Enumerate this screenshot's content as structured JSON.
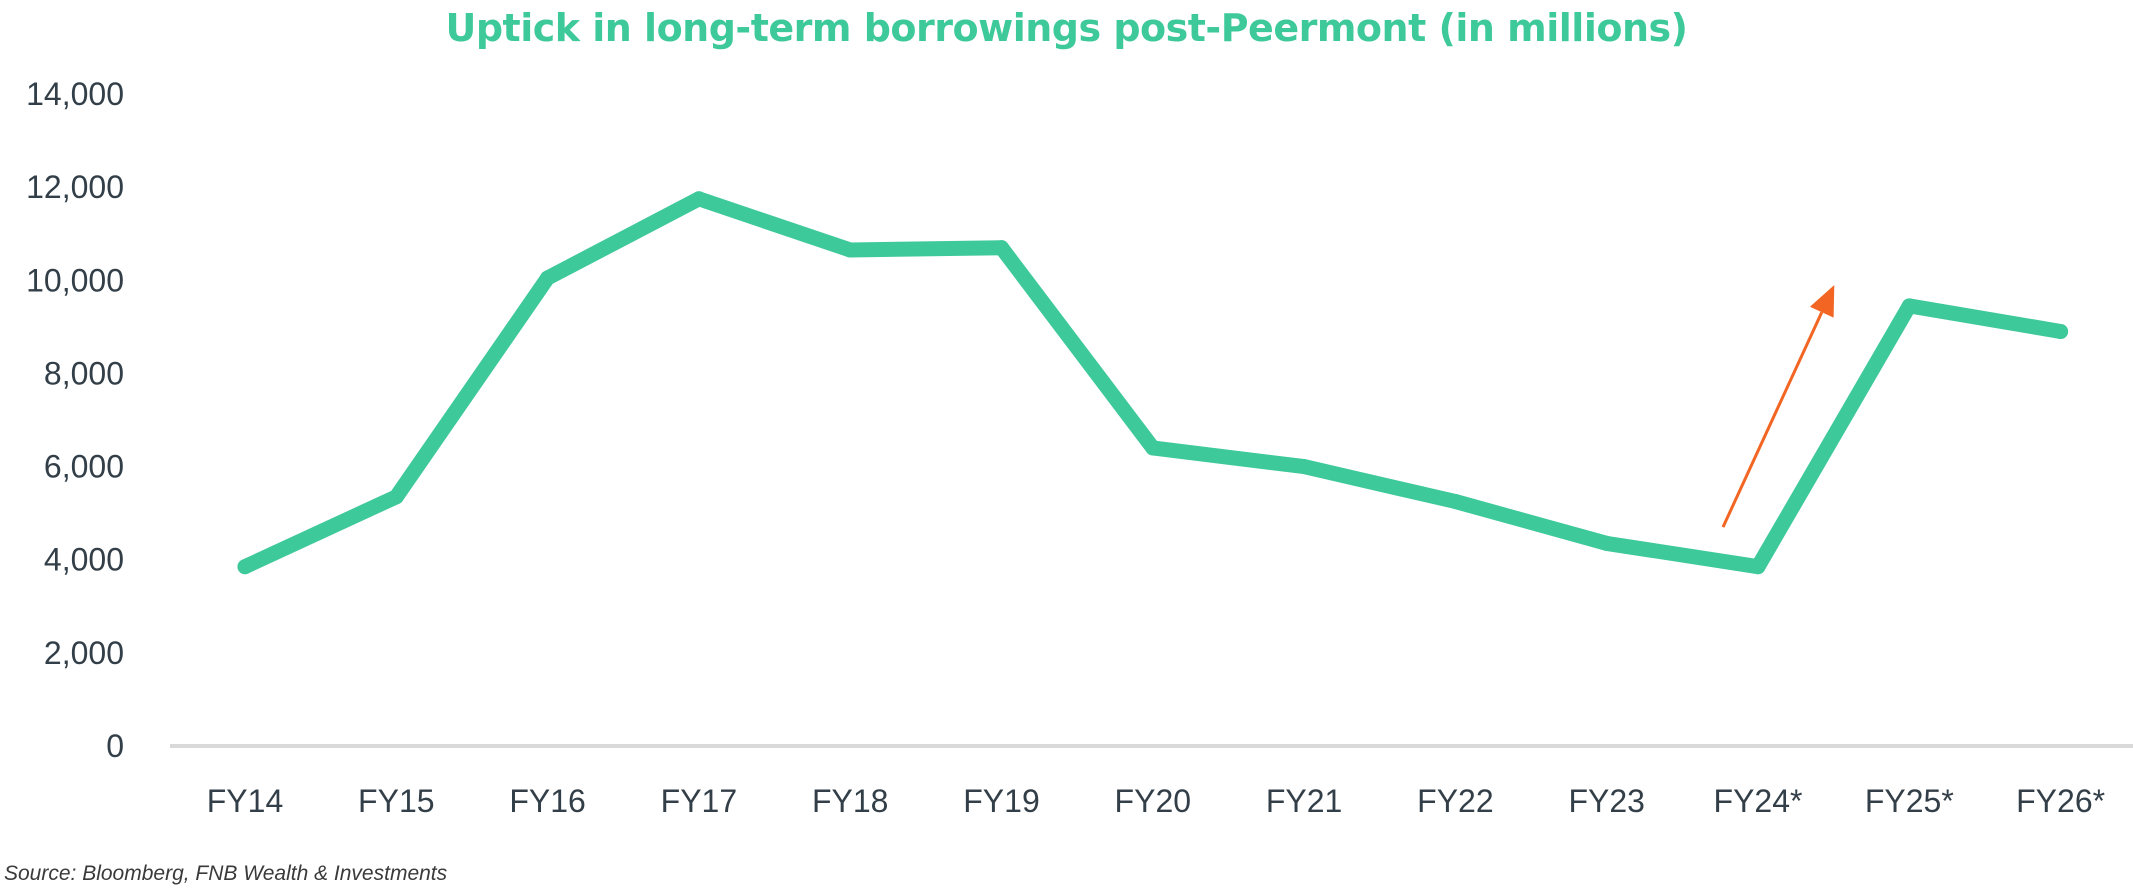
{
  "source": "Source: Bloomberg, FNB Wealth & Investments",
  "colors": {
    "line": "#3ec99a",
    "title": "#3ec99a",
    "arrow": "#f26522",
    "baseline": "#d9d9d9",
    "tick_text": "#333f48"
  },
  "chart_data": {
    "type": "line",
    "title": "Uptick in long-term borrowings post-Peermont (in millions)",
    "xlabel": "",
    "ylabel": "",
    "categories": [
      "FY14",
      "FY15",
      "FY16",
      "FY17",
      "FY18",
      "FY19",
      "FY20",
      "FY21",
      "FY22",
      "FY23",
      "FY24*",
      "FY25*",
      "FY26*"
    ],
    "series": [
      {
        "values": [
          3850,
          5350,
          10050,
          11750,
          10650,
          10700,
          6400,
          6000,
          5250,
          4350,
          3850,
          9450,
          8900
        ]
      }
    ],
    "ylim": [
      0,
      14000
    ],
    "yticks": [
      0,
      2000,
      4000,
      6000,
      8000,
      10000,
      12000,
      14000
    ],
    "ytick_labels": [
      "0",
      "2,000",
      "4,000",
      "6,000",
      "8,000",
      "10,000",
      "12,000",
      "14,000"
    ],
    "grid": false,
    "legend": "none",
    "annotations": [
      {
        "type": "arrow",
        "description": "upward-trend-arrow",
        "from": {
          "x": "FY24*",
          "y": 4700
        },
        "to": {
          "x": "FY25*",
          "y": 9900
        }
      }
    ]
  }
}
